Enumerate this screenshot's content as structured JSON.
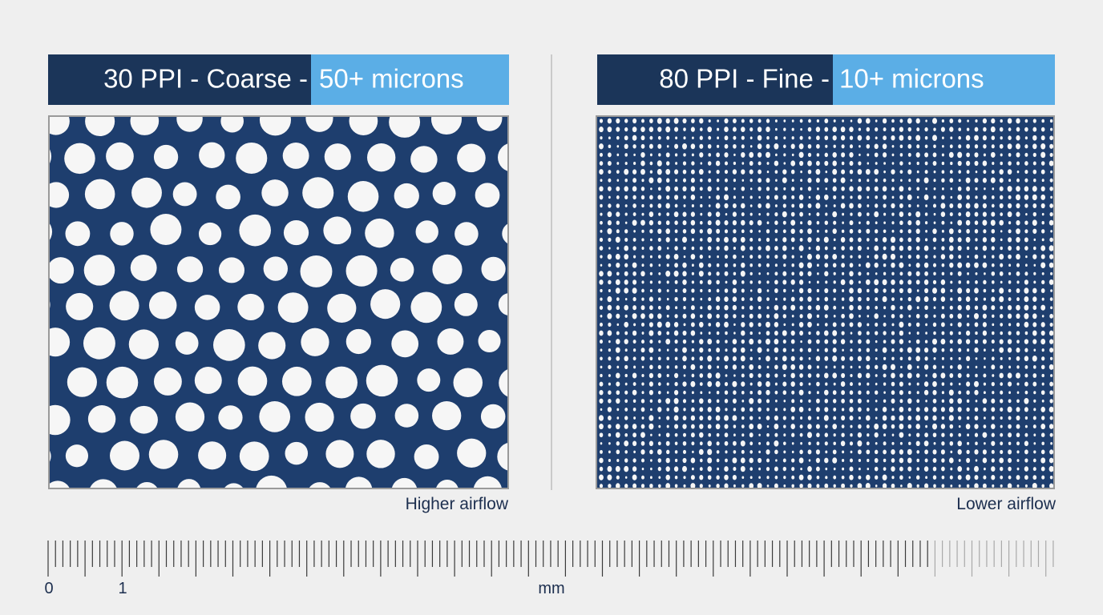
{
  "panels": [
    {
      "title_main": "30 PPI - Coarse -",
      "title_highlight": "50+ microns",
      "caption": "Higher airflow"
    },
    {
      "title_main": "80 PPI - Fine -",
      "title_highlight": "10+ microns",
      "caption": "Lower airflow"
    }
  ],
  "scale": {
    "labels": [
      "0",
      "1"
    ],
    "unit": "mm"
  }
}
